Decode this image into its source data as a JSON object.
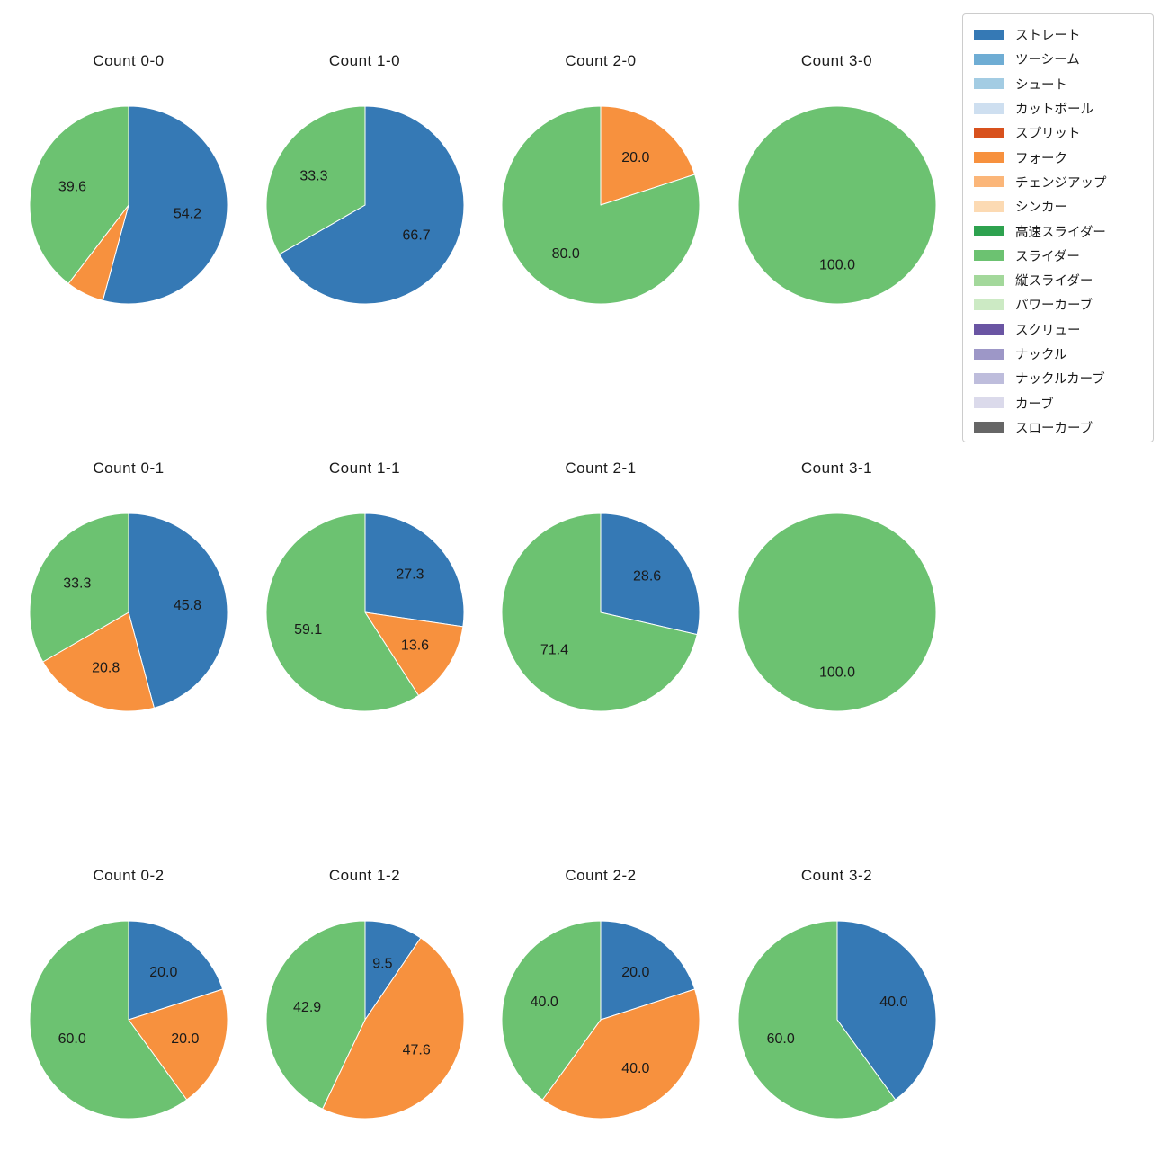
{
  "figure": {
    "background": "#ffffff",
    "text_color": "#1a1a1a"
  },
  "legend": {
    "border_color": "#cccccc",
    "position": "top-right",
    "items": [
      {
        "label": "ストレート",
        "color": "#3579b5"
      },
      {
        "label": "ツーシーム",
        "color": "#6fadd4"
      },
      {
        "label": "シュート",
        "color": "#a3cce3"
      },
      {
        "label": "カットボール",
        "color": "#cedff0"
      },
      {
        "label": "スプリット",
        "color": "#d8511d"
      },
      {
        "label": "フォーク",
        "color": "#f7913e"
      },
      {
        "label": "チェンジアップ",
        "color": "#fbb679"
      },
      {
        "label": "シンカー",
        "color": "#fcdab3"
      },
      {
        "label": "高速スライダー",
        "color": "#2ea24f"
      },
      {
        "label": "スライダー",
        "color": "#6cc271"
      },
      {
        "label": "縦スライダー",
        "color": "#a3d89b"
      },
      {
        "label": "パワーカーブ",
        "color": "#cceac4"
      },
      {
        "label": "スクリュー",
        "color": "#6a55a3"
      },
      {
        "label": "ナックル",
        "color": "#9d97c7"
      },
      {
        "label": "ナックルカーブ",
        "color": "#bebddc"
      },
      {
        "label": "カーブ",
        "color": "#dbdaeb"
      },
      {
        "label": "スローカーブ",
        "color": "#666666"
      }
    ]
  },
  "chart_data": [
    {
      "type": "pie",
      "title": "Count 0-0",
      "start_angle_deg": 90,
      "clockwise": true,
      "pct_distance": 0.6,
      "slices": [
        {
          "name": "ストレート",
          "value": 54.2,
          "pct_label": "54.2",
          "color": "#3579b5"
        },
        {
          "name": "フォーク",
          "value": 6.2,
          "pct_label": "",
          "color": "#f7913e"
        },
        {
          "name": "スライダー",
          "value": 39.6,
          "pct_label": "39.6",
          "color": "#6cc271"
        }
      ]
    },
    {
      "type": "pie",
      "title": "Count 1-0",
      "start_angle_deg": 90,
      "clockwise": true,
      "pct_distance": 0.6,
      "slices": [
        {
          "name": "ストレート",
          "value": 66.7,
          "pct_label": "66.7",
          "color": "#3579b5"
        },
        {
          "name": "スライダー",
          "value": 33.3,
          "pct_label": "33.3",
          "color": "#6cc271"
        }
      ]
    },
    {
      "type": "pie",
      "title": "Count 2-0",
      "start_angle_deg": 90,
      "clockwise": true,
      "pct_distance": 0.6,
      "slices": [
        {
          "name": "フォーク",
          "value": 20.0,
          "pct_label": "20.0",
          "color": "#f7913e"
        },
        {
          "name": "スライダー",
          "value": 80.0,
          "pct_label": "80.0",
          "color": "#6cc271"
        }
      ]
    },
    {
      "type": "pie",
      "title": "Count 3-0",
      "start_angle_deg": 90,
      "clockwise": true,
      "pct_distance": 0.6,
      "slices": [
        {
          "name": "スライダー",
          "value": 100.0,
          "pct_label": "100.0",
          "color": "#6cc271"
        }
      ]
    },
    {
      "type": "pie",
      "title": "Count 0-1",
      "start_angle_deg": 90,
      "clockwise": true,
      "pct_distance": 0.6,
      "slices": [
        {
          "name": "ストレート",
          "value": 45.8,
          "pct_label": "45.8",
          "color": "#3579b5"
        },
        {
          "name": "フォーク",
          "value": 20.8,
          "pct_label": "20.8",
          "color": "#f7913e"
        },
        {
          "name": "スライダー",
          "value": 33.3,
          "pct_label": "33.3",
          "color": "#6cc271"
        }
      ]
    },
    {
      "type": "pie",
      "title": "Count 1-1",
      "start_angle_deg": 90,
      "clockwise": true,
      "pct_distance": 0.6,
      "slices": [
        {
          "name": "ストレート",
          "value": 27.3,
          "pct_label": "27.3",
          "color": "#3579b5"
        },
        {
          "name": "フォーク",
          "value": 13.6,
          "pct_label": "13.6",
          "color": "#f7913e"
        },
        {
          "name": "スライダー",
          "value": 59.1,
          "pct_label": "59.1",
          "color": "#6cc271"
        }
      ]
    },
    {
      "type": "pie",
      "title": "Count 2-1",
      "start_angle_deg": 90,
      "clockwise": true,
      "pct_distance": 0.6,
      "slices": [
        {
          "name": "ストレート",
          "value": 28.6,
          "pct_label": "28.6",
          "color": "#3579b5"
        },
        {
          "name": "スライダー",
          "value": 71.4,
          "pct_label": "71.4",
          "color": "#6cc271"
        }
      ]
    },
    {
      "type": "pie",
      "title": "Count 3-1",
      "start_angle_deg": 90,
      "clockwise": true,
      "pct_distance": 0.6,
      "slices": [
        {
          "name": "スライダー",
          "value": 100.0,
          "pct_label": "100.0",
          "color": "#6cc271"
        }
      ]
    },
    {
      "type": "pie",
      "title": "Count 0-2",
      "start_angle_deg": 90,
      "clockwise": true,
      "pct_distance": 0.6,
      "slices": [
        {
          "name": "ストレート",
          "value": 20.0,
          "pct_label": "20.0",
          "color": "#3579b5"
        },
        {
          "name": "フォーク",
          "value": 20.0,
          "pct_label": "20.0",
          "color": "#f7913e"
        },
        {
          "name": "スライダー",
          "value": 60.0,
          "pct_label": "60.0",
          "color": "#6cc271"
        }
      ]
    },
    {
      "type": "pie",
      "title": "Count 1-2",
      "start_angle_deg": 90,
      "clockwise": true,
      "pct_distance": 0.6,
      "slices": [
        {
          "name": "ストレート",
          "value": 9.5,
          "pct_label": "9.5",
          "color": "#3579b5"
        },
        {
          "name": "フォーク",
          "value": 47.6,
          "pct_label": "47.6",
          "color": "#f7913e"
        },
        {
          "name": "スライダー",
          "value": 42.9,
          "pct_label": "42.9",
          "color": "#6cc271"
        }
      ]
    },
    {
      "type": "pie",
      "title": "Count 2-2",
      "start_angle_deg": 90,
      "clockwise": true,
      "pct_distance": 0.6,
      "slices": [
        {
          "name": "ストレート",
          "value": 20.0,
          "pct_label": "20.0",
          "color": "#3579b5"
        },
        {
          "name": "フォーク",
          "value": 40.0,
          "pct_label": "40.0",
          "color": "#f7913e"
        },
        {
          "name": "スライダー",
          "value": 40.0,
          "pct_label": "40.0",
          "color": "#6cc271"
        }
      ]
    },
    {
      "type": "pie",
      "title": "Count 3-2",
      "start_angle_deg": 90,
      "clockwise": true,
      "pct_distance": 0.6,
      "slices": [
        {
          "name": "ストレート",
          "value": 40.0,
          "pct_label": "40.0",
          "color": "#3579b5"
        },
        {
          "name": "スライダー",
          "value": 60.0,
          "pct_label": "60.0",
          "color": "#6cc271"
        }
      ]
    }
  ]
}
